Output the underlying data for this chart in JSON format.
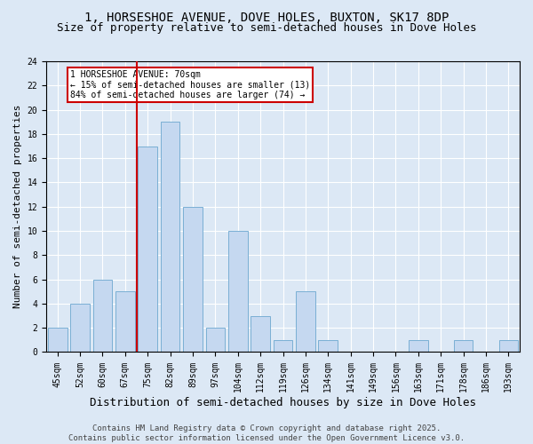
{
  "title1": "1, HORSESHOE AVENUE, DOVE HOLES, BUXTON, SK17 8DP",
  "title2": "Size of property relative to semi-detached houses in Dove Holes",
  "xlabel": "Distribution of semi-detached houses by size in Dove Holes",
  "ylabel": "Number of semi-detached properties",
  "categories": [
    "45sqm",
    "52sqm",
    "60sqm",
    "67sqm",
    "75sqm",
    "82sqm",
    "89sqm",
    "97sqm",
    "104sqm",
    "112sqm",
    "119sqm",
    "126sqm",
    "134sqm",
    "141sqm",
    "149sqm",
    "156sqm",
    "163sqm",
    "171sqm",
    "178sqm",
    "186sqm",
    "193sqm"
  ],
  "values": [
    2,
    4,
    6,
    5,
    17,
    19,
    12,
    2,
    10,
    3,
    1,
    5,
    1,
    0,
    0,
    0,
    1,
    0,
    1,
    0,
    1
  ],
  "bar_color": "#c5d8f0",
  "bar_edge_color": "#7aafd4",
  "vline_color": "#cc0000",
  "annotation_text": "1 HORSESHOE AVENUE: 70sqm\n← 15% of semi-detached houses are smaller (13)\n84% of semi-detached houses are larger (74) →",
  "annotation_box_color": "#ffffff",
  "annotation_box_edge_color": "#cc0000",
  "ylim": [
    0,
    24
  ],
  "yticks": [
    0,
    2,
    4,
    6,
    8,
    10,
    12,
    14,
    16,
    18,
    20,
    22,
    24
  ],
  "background_color": "#dce8f5",
  "plot_bg_color": "#dce8f5",
  "footer": "Contains HM Land Registry data © Crown copyright and database right 2025.\nContains public sector information licensed under the Open Government Licence v3.0.",
  "title1_fontsize": 10,
  "title2_fontsize": 9,
  "xlabel_fontsize": 9,
  "ylabel_fontsize": 8,
  "tick_fontsize": 7,
  "annotation_fontsize": 7,
  "footer_fontsize": 6.5
}
